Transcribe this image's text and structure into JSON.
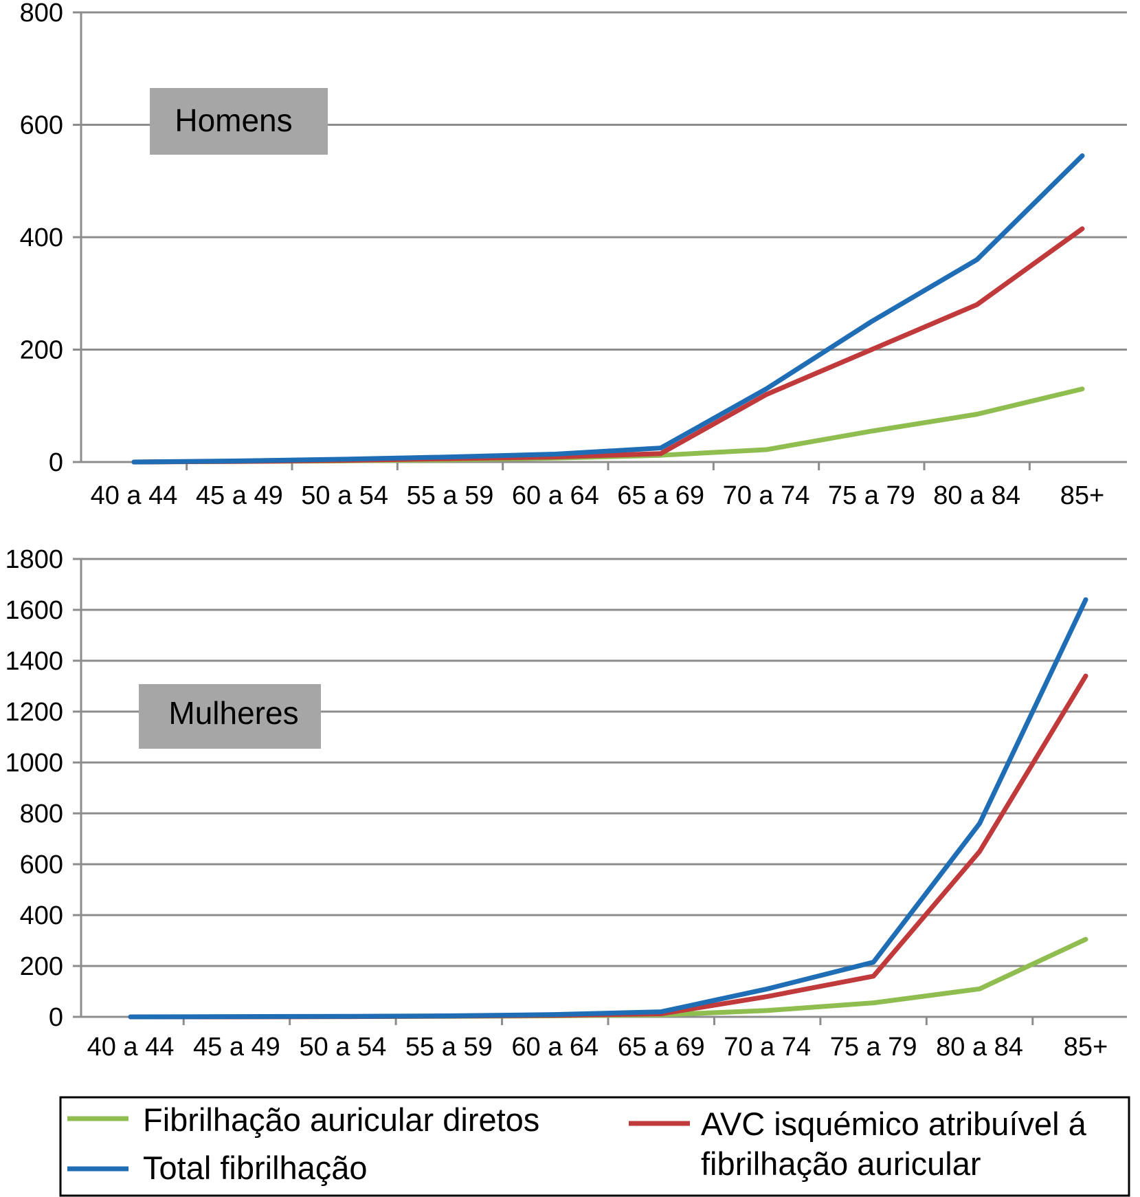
{
  "colors": {
    "direct": "#8fbd4f",
    "total": "#1f6db5",
    "stroke": "#c0393b",
    "grid": "#8c8c8c",
    "label_box": "#a6a6a6"
  },
  "chart_data": [
    {
      "type": "line",
      "panel_label": "Homens",
      "categories": [
        "40 a 44",
        "45 a 49",
        "50 a 54",
        "55 a 59",
        "60 a 64",
        "65 a 69",
        "70 a 74",
        "75 a 79",
        "80 a 84",
        "85+"
      ],
      "ylim": [
        0,
        800
      ],
      "yticks": [
        "0",
        "200",
        "400",
        "600",
        "800"
      ],
      "grid": true,
      "series": [
        {
          "key": "direct",
          "values": [
            0,
            1,
            2,
            4,
            7,
            12,
            22,
            55,
            85,
            130
          ]
        },
        {
          "key": "stroke",
          "values": [
            0,
            1,
            3,
            6,
            9,
            15,
            120,
            200,
            280,
            415
          ]
        },
        {
          "key": "total",
          "values": [
            0,
            2,
            5,
            9,
            14,
            25,
            130,
            250,
            360,
            545
          ]
        }
      ]
    },
    {
      "type": "line",
      "panel_label": "Mulheres",
      "categories": [
        "40 a 44",
        "45 a 49",
        "50 a 54",
        "55 a 59",
        "60 a 64",
        "65 a 69",
        "70 a 74",
        "75 a 79",
        "80 a 84",
        "85+"
      ],
      "ylim": [
        0,
        1800
      ],
      "yticks": [
        "0",
        "200",
        "400",
        "600",
        "800",
        "1000",
        "1200",
        "1400",
        "1600",
        "1800"
      ],
      "grid": true,
      "series": [
        {
          "key": "direct",
          "values": [
            0,
            0,
            1,
            2,
            4,
            8,
            25,
            55,
            110,
            305
          ]
        },
        {
          "key": "stroke",
          "values": [
            0,
            0,
            1,
            3,
            6,
            12,
            80,
            160,
            650,
            1340
          ]
        },
        {
          "key": "total",
          "values": [
            0,
            1,
            2,
            4,
            9,
            20,
            110,
            215,
            760,
            1640
          ]
        }
      ]
    }
  ],
  "legend": {
    "direct": "Fibrilhação auricular diretos",
    "total": "Total fibrilhação",
    "stroke_line1": "AVC isquémico atribuível á",
    "stroke_line2": "fibrilhação auricular"
  }
}
